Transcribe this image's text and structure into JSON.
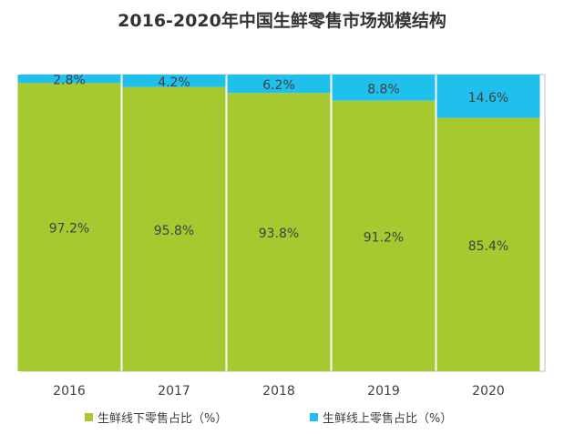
{
  "chart_data": {
    "type": "bar",
    "stacked": true,
    "title": "2016-2020年中国生鲜零售市场规模结构",
    "categories": [
      "2016",
      "2017",
      "2018",
      "2019",
      "2020"
    ],
    "series": [
      {
        "name": "生鲜线下零售占比（%）",
        "color": "#a7c930",
        "values": [
          97.2,
          95.8,
          93.8,
          91.2,
          85.4
        ],
        "labels": [
          "97.2%",
          "95.8%",
          "93.8%",
          "91.2%",
          "85.4%"
        ]
      },
      {
        "name": "生鲜线上零售占比（%）",
        "color": "#1fc1ec",
        "values": [
          2.8,
          4.2,
          6.2,
          8.8,
          14.6
        ],
        "labels": [
          "2.8%",
          "4.2%",
          "6.2%",
          "8.8%",
          "14.6%"
        ]
      }
    ],
    "ylim": [
      0,
      100
    ],
    "grid": false,
    "legend_position": "bottom"
  }
}
